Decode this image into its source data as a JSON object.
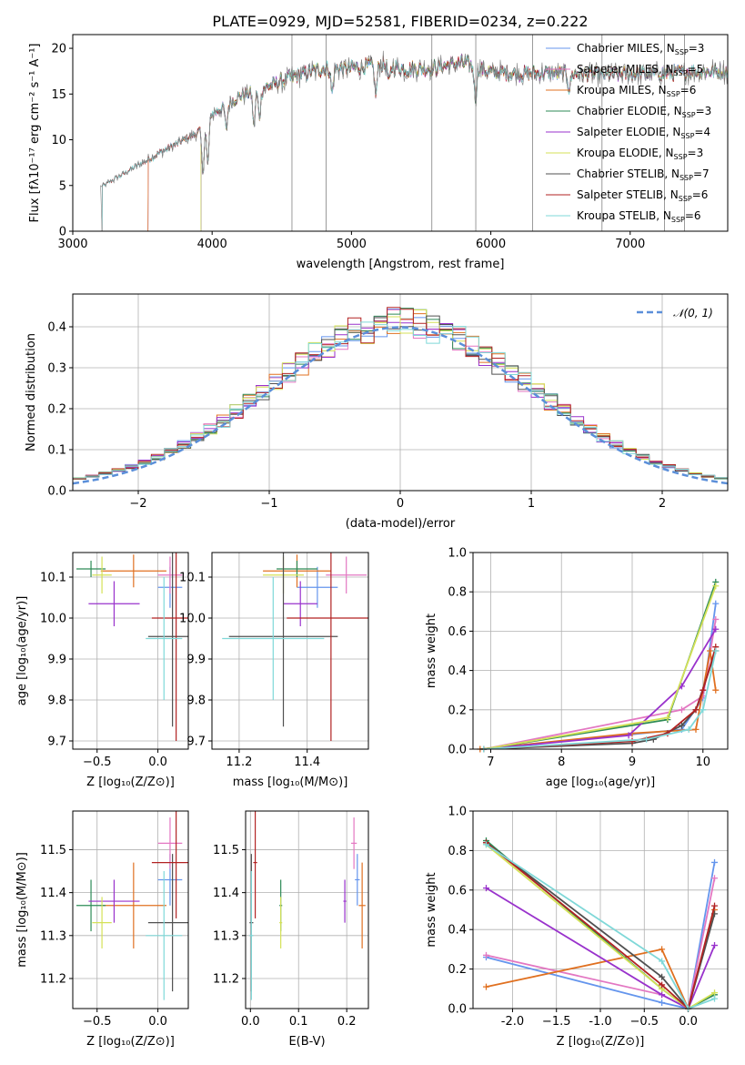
{
  "figure": {
    "title": "PLATE=0929, MJD=52581, FIBERID=0234, z=0.222"
  },
  "chart_data": [
    {
      "id": "spectrum",
      "type": "line",
      "xlabel": "wavelength [Angstrom, rest frame]",
      "ylabel": "Flux [fλ10⁻¹⁷ erg cm⁻² s⁻¹ A⁻¹]",
      "xlim": [
        3000,
        7700
      ],
      "ylim": [
        0,
        21.5
      ],
      "xticks": [
        3000,
        4000,
        5000,
        6000,
        7000
      ],
      "yticks": [
        0,
        5,
        10,
        15,
        20
      ],
      "grid": false,
      "legend_position": "top-right",
      "continuum": {
        "x": [
          3200,
          3500,
          3700,
          3900,
          4000,
          4200,
          4400,
          4600,
          4800,
          5000,
          5200,
          5400,
          5600,
          5800,
          6000,
          6200,
          6400,
          6600,
          6800,
          7000,
          7200,
          7400,
          7600,
          7700
        ],
        "y": [
          4.8,
          7.5,
          9.2,
          10.8,
          12.8,
          14.8,
          15.8,
          17.0,
          17.8,
          17.8,
          18.2,
          17.7,
          17.9,
          18.4,
          17.4,
          17.2,
          17.3,
          17.2,
          17.1,
          17.2,
          17.2,
          17.4,
          17.5,
          17.5
        ]
      },
      "series": [
        {
          "name": "Chabrier MILES, N_SSP=3",
          "color": "#6495ed",
          "start": 3540
        },
        {
          "name": "Salpeter MILES, N_SSP=5",
          "color": "#e377c2",
          "start": 3540
        },
        {
          "name": "Kroupa MILES, N_SSP=6",
          "color": "#e07020",
          "start": 3540
        },
        {
          "name": "Chabrier ELODIE, N_SSP=3",
          "color": "#2e8b57",
          "start": 3920
        },
        {
          "name": "Salpeter ELODIE, N_SSP=4",
          "color": "#9932cc",
          "start": 3920
        },
        {
          "name": "Kroupa ELODIE, N_SSP=3",
          "color": "#d4e157",
          "start": 3920
        },
        {
          "name": "Chabrier STELIB, N_SSP=7",
          "color": "#505050",
          "start": 3210
        },
        {
          "name": "Salpeter STELIB, N_SSP=6",
          "color": "#b22222",
          "start": 3210
        },
        {
          "name": "Kroupa STELIB, N_SSP=6",
          "color": "#7fd8d8",
          "start": 3210
        }
      ],
      "legend_labels": [
        "Chabrier MILES, N",
        "Salpeter MILES, N",
        "Kroupa MILES, N",
        "Chabrier ELODIE, N",
        "Salpeter ELODIE, N",
        "Kroupa ELODIE, N",
        "Chabrier STELIB, N",
        "Salpeter STELIB, N",
        "Kroupa STELIB, N"
      ],
      "legend_sub": "SSP",
      "legend_vals": [
        "=3",
        "=5",
        "=6",
        "=3",
        "=4",
        "=3",
        "=7",
        "=6",
        "=6"
      ]
    },
    {
      "id": "residuals",
      "type": "histogram",
      "xlabel": "(data-model)/error",
      "ylabel": "Normed distribution",
      "xlim": [
        -2.5,
        2.5
      ],
      "ylim": [
        0,
        0.48
      ],
      "xticks": [
        -2,
        -1,
        0,
        1,
        2
      ],
      "yticks": [
        0.0,
        0.1,
        0.2,
        0.3,
        0.4
      ],
      "grid": true,
      "legend_position": "top-right",
      "legend_label": "𝒩(0, 1)",
      "gaussian_color": "#5b8fd9",
      "bin_width": 0.1
    },
    {
      "id": "age_vs_Z",
      "type": "errorbar",
      "xlabel": "Z [log₁₀(Z/Z⊙)]",
      "ylabel": "age  [log₁₀(age/yr)]",
      "xlim": [
        -0.7,
        0.25
      ],
      "ylim": [
        9.68,
        10.16
      ],
      "xticks": [
        -0.5,
        0.0
      ],
      "yticks": [
        9.7,
        9.8,
        9.9,
        10.0,
        10.1
      ],
      "grid": true
    },
    {
      "id": "age_vs_mass",
      "type": "errorbar",
      "xlabel": "mass [log₁₀(M/M⊙)]",
      "ylabel": "",
      "xlim": [
        11.12,
        11.58
      ],
      "ylim": [
        9.68,
        10.16
      ],
      "xticks": [
        11.2,
        11.4
      ],
      "yticks": [
        9.7,
        9.8,
        9.9,
        10.0,
        10.1
      ],
      "grid": true
    },
    {
      "id": "weight_vs_age",
      "type": "line",
      "xlabel": "age  [log₁₀(age/yr)]",
      "ylabel": "mass weight",
      "xlim": [
        6.75,
        10.35
      ],
      "ylim": [
        0,
        1
      ],
      "xticks": [
        7,
        8,
        9,
        10
      ],
      "yticks": [
        0.0,
        0.2,
        0.4,
        0.6,
        0.8,
        1.0
      ],
      "grid": true
    },
    {
      "id": "mass_vs_Z",
      "type": "errorbar",
      "xlabel": "Z [log₁₀(Z/Z⊙)]",
      "ylabel": "mass [log₁₀(M/M⊙)]",
      "xlim": [
        -0.7,
        0.25
      ],
      "ylim": [
        11.13,
        11.59
      ],
      "xticks": [
        -0.5,
        0.0
      ],
      "yticks": [
        11.2,
        11.3,
        11.4,
        11.5
      ],
      "grid": true
    },
    {
      "id": "mass_vs_ebv",
      "type": "errorbar",
      "xlabel": "E(B-V)",
      "ylabel": "",
      "xlim": [
        -0.01,
        0.245
      ],
      "ylim": [
        11.13,
        11.59
      ],
      "xticks": [
        0.0,
        0.1,
        0.2
      ],
      "yticks": [
        11.2,
        11.3,
        11.4,
        11.5
      ],
      "grid": true
    },
    {
      "id": "weight_vs_Z",
      "type": "line",
      "xlabel": "Z [log₁₀(Z/Z⊙)]",
      "ylabel": "mass weight",
      "xlim": [
        -2.45,
        0.45
      ],
      "ylim": [
        0,
        1
      ],
      "xticks": [
        -2.0,
        -1.5,
        -1.0,
        -0.5,
        0.0
      ],
      "yticks": [
        0.0,
        0.2,
        0.4,
        0.6,
        0.8,
        1.0
      ],
      "grid": true
    }
  ],
  "points": [
    {
      "color": "#6495ed",
      "Z": 0.1,
      "Zerr": 0.1,
      "age": 10.075,
      "ageErr": 0.05,
      "mass": 11.43,
      "massErr": 0.06,
      "ebv": 0.222,
      "ebvErr": 0.005
    },
    {
      "color": "#e377c2",
      "Z": 0.1,
      "Zerr": 0.1,
      "age": 10.105,
      "ageErr": 0.045,
      "mass": 11.515,
      "massErr": 0.06,
      "ebv": 0.215,
      "ebvErr": 0.006
    },
    {
      "color": "#e07020",
      "Z": -0.2,
      "Zerr": 0.27,
      "age": 10.115,
      "ageErr": 0.04,
      "mass": 11.37,
      "massErr": 0.1,
      "ebv": 0.232,
      "ebvErr": 0.007
    },
    {
      "color": "#2e8b57",
      "Z": -0.55,
      "Zerr": 0.12,
      "age": 10.12,
      "ageErr": 0.02,
      "mass": 11.37,
      "massErr": 0.06,
      "ebv": 0.063,
      "ebvErr": 0.003
    },
    {
      "color": "#9932cc",
      "Z": -0.36,
      "Zerr": 0.21,
      "age": 10.035,
      "ageErr": 0.055,
      "mass": 11.38,
      "massErr": 0.05,
      "ebv": 0.196,
      "ebvErr": 0.003
    },
    {
      "color": "#d4e157",
      "Z": -0.46,
      "Zerr": 0.08,
      "age": 10.105,
      "ageErr": 0.045,
      "mass": 11.33,
      "massErr": 0.06,
      "ebv": 0.063,
      "ebvErr": 0.003
    },
    {
      "color": "#505050",
      "Z": 0.12,
      "Zerr": 0.2,
      "age": 9.955,
      "ageErr": 0.22,
      "mass": 11.33,
      "massErr": 0.16,
      "ebv": 0.002,
      "ebvErr": 0.004
    },
    {
      "color": "#b22222",
      "Z": 0.15,
      "Zerr": 0.2,
      "age": 10.0,
      "ageErr": 0.3,
      "mass": 11.47,
      "massErr": 0.13,
      "ebv": 0.01,
      "ebvErr": 0.004
    },
    {
      "color": "#7fd8d8",
      "Z": 0.05,
      "Zerr": 0.15,
      "age": 9.95,
      "ageErr": 0.15,
      "mass": 11.3,
      "massErr": 0.15,
      "ebv": 0.002,
      "ebvErr": 0.004
    }
  ],
  "cumulative_age": [
    {
      "color": "#6495ed",
      "x": [
        6.9,
        9.7,
        10.0,
        10.18
      ],
      "y": [
        0.0,
        0.1,
        0.26,
        0.74
      ]
    },
    {
      "color": "#e377c2",
      "x": [
        6.9,
        9.7,
        10.0,
        10.18
      ],
      "y": [
        0.0,
        0.2,
        0.27,
        0.66
      ]
    },
    {
      "color": "#e07020",
      "x": [
        6.85,
        9.0,
        9.9,
        10.1,
        10.18
      ],
      "y": [
        0.0,
        0.08,
        0.1,
        0.5,
        0.3
      ]
    },
    {
      "color": "#2e8b57",
      "x": [
        6.9,
        9.5,
        10.18
      ],
      "y": [
        0.0,
        0.15,
        0.85
      ]
    },
    {
      "color": "#9932cc",
      "x": [
        6.9,
        8.95,
        9.7,
        10.18
      ],
      "y": [
        0.0,
        0.07,
        0.32,
        0.61
      ]
    },
    {
      "color": "#d4e157",
      "x": [
        6.9,
        9.5,
        10.18
      ],
      "y": [
        0.0,
        0.16,
        0.83
      ]
    },
    {
      "color": "#505050",
      "x": [
        6.9,
        9.0,
        9.3,
        9.7,
        9.9,
        10.18
      ],
      "y": [
        0.0,
        0.03,
        0.05,
        0.12,
        0.2,
        0.5
      ]
    },
    {
      "color": "#b22222",
      "x": [
        6.9,
        9.0,
        9.5,
        9.9,
        10.0,
        10.18
      ],
      "y": [
        0.0,
        0.04,
        0.08,
        0.2,
        0.3,
        0.52
      ]
    },
    {
      "color": "#7fd8d8",
      "x": [
        6.9,
        9.2,
        9.8,
        10.0,
        10.18
      ],
      "y": [
        0.0,
        0.05,
        0.1,
        0.2,
        0.5
      ]
    }
  ],
  "cumulative_Z": [
    {
      "color": "#6495ed",
      "x": [
        -2.3,
        -0.3,
        0.0,
        0.3
      ],
      "y": [
        0.26,
        0.03,
        0.0,
        0.74
      ]
    },
    {
      "color": "#e377c2",
      "x": [
        -2.3,
        -0.3,
        0.0,
        0.3
      ],
      "y": [
        0.27,
        0.07,
        0.0,
        0.66
      ]
    },
    {
      "color": "#e07020",
      "x": [
        -2.3,
        -0.3,
        0.0,
        0.3
      ],
      "y": [
        0.11,
        0.3,
        0.0,
        0.5
      ]
    },
    {
      "color": "#2e8b57",
      "x": [
        -2.3,
        -0.3,
        0.0,
        0.3
      ],
      "y": [
        0.85,
        0.1,
        0.0,
        0.07
      ]
    },
    {
      "color": "#9932cc",
      "x": [
        -2.3,
        -0.3,
        0.0,
        0.3
      ],
      "y": [
        0.61,
        0.07,
        0.0,
        0.32
      ]
    },
    {
      "color": "#d4e157",
      "x": [
        -2.3,
        -0.3,
        0.0,
        0.3
      ],
      "y": [
        0.83,
        0.1,
        0.0,
        0.08
      ]
    },
    {
      "color": "#505050",
      "x": [
        -2.3,
        -0.3,
        0.0,
        0.3
      ],
      "y": [
        0.84,
        0.16,
        0.0,
        0.48
      ]
    },
    {
      "color": "#b22222",
      "x": [
        -2.3,
        -0.3,
        0.0,
        0.3
      ],
      "y": [
        0.84,
        0.12,
        0.0,
        0.52
      ]
    },
    {
      "color": "#7fd8d8",
      "x": [
        -2.3,
        -0.3,
        0.0,
        0.3
      ],
      "y": [
        0.83,
        0.24,
        0.0,
        0.05
      ]
    }
  ]
}
